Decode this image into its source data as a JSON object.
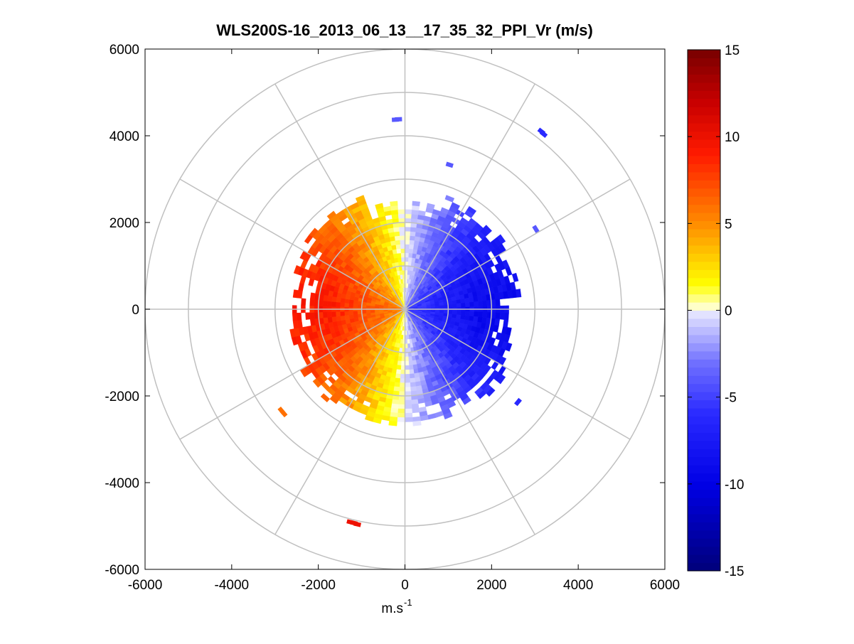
{
  "chart_data": {
    "type": "heatmap",
    "subtype": "polar-ppi",
    "title": "WLS200S-16_2013_06_13__17_35_32_PPI_Vr (m/s)",
    "xlabel": "m.s",
    "xlabel_superscript": "-1",
    "ylabel": "",
    "xlim": [
      -6000,
      6000
    ],
    "ylim": [
      -6000,
      6000
    ],
    "xticks": [
      -6000,
      -4000,
      -2000,
      0,
      2000,
      4000,
      6000
    ],
    "yticks": [
      -6000,
      -4000,
      -2000,
      0,
      2000,
      4000,
      6000
    ],
    "xtick_labels": [
      "-6000",
      "-4000",
      "-2000",
      "0",
      "2000",
      "4000",
      "6000"
    ],
    "ytick_labels": [
      "-6000",
      "-4000",
      "-2000",
      "0",
      "2000",
      "4000",
      "6000"
    ],
    "polar_grid": {
      "ring_radii": [
        1000,
        2000,
        3000,
        4000,
        5000,
        6000
      ],
      "spoke_angles_deg": [
        0,
        30,
        60,
        90,
        120,
        150,
        180,
        210,
        240,
        270,
        300,
        330
      ]
    },
    "colorbar": {
      "range": [
        -15,
        15
      ],
      "ticks": [
        -15,
        -10,
        -5,
        0,
        5,
        10,
        15
      ],
      "tick_labels": [
        "-15",
        "-10",
        "-5",
        "0",
        "5",
        "10",
        "15"
      ],
      "colormap_stops": [
        {
          "v": -15,
          "color": "#00007a"
        },
        {
          "v": -10,
          "color": "#0000e6"
        },
        {
          "v": -6,
          "color": "#2929ff"
        },
        {
          "v": -3,
          "color": "#7070ff"
        },
        {
          "v": -0.01,
          "color": "#ebebff"
        },
        {
          "v": 0.01,
          "color": "#ffffeb"
        },
        {
          "v": 1.5,
          "color": "#ffff00"
        },
        {
          "v": 5,
          "color": "#ff8c00"
        },
        {
          "v": 9,
          "color": "#ff1a00"
        },
        {
          "v": 12,
          "color": "#c80000"
        },
        {
          "v": 15,
          "color": "#780000"
        }
      ]
    },
    "field": {
      "description_values": "radial velocity Vr in m/s on range-azimuth bins",
      "range_min": 0,
      "range_max": 2800,
      "range_step": 100,
      "azimuth_step_deg": 4,
      "vr_max_ms": 9,
      "north_south_gap_deg": 0,
      "scattered_bins": [
        {
          "x": -220,
          "y": 4370,
          "vr": -4
        },
        {
          "x": -150,
          "y": 4380,
          "vr": -4
        },
        {
          "x": 1030,
          "y": 3330,
          "vr": -4
        },
        {
          "x": 3150,
          "y": 4100,
          "vr": -6
        },
        {
          "x": 3200,
          "y": 4040,
          "vr": -6
        },
        {
          "x": 3020,
          "y": 1850,
          "vr": -4
        },
        {
          "x": 2610,
          "y": -2140,
          "vr": -6
        },
        {
          "x": -2850,
          "y": -2340,
          "vr": 6
        },
        {
          "x": -2800,
          "y": -2400,
          "vr": 6
        },
        {
          "x": -1260,
          "y": -4910,
          "vr": 10
        },
        {
          "x": -1100,
          "y": -4960,
          "vr": 10
        },
        {
          "x": -1180,
          "y": -4930,
          "vr": 10
        }
      ]
    }
  }
}
